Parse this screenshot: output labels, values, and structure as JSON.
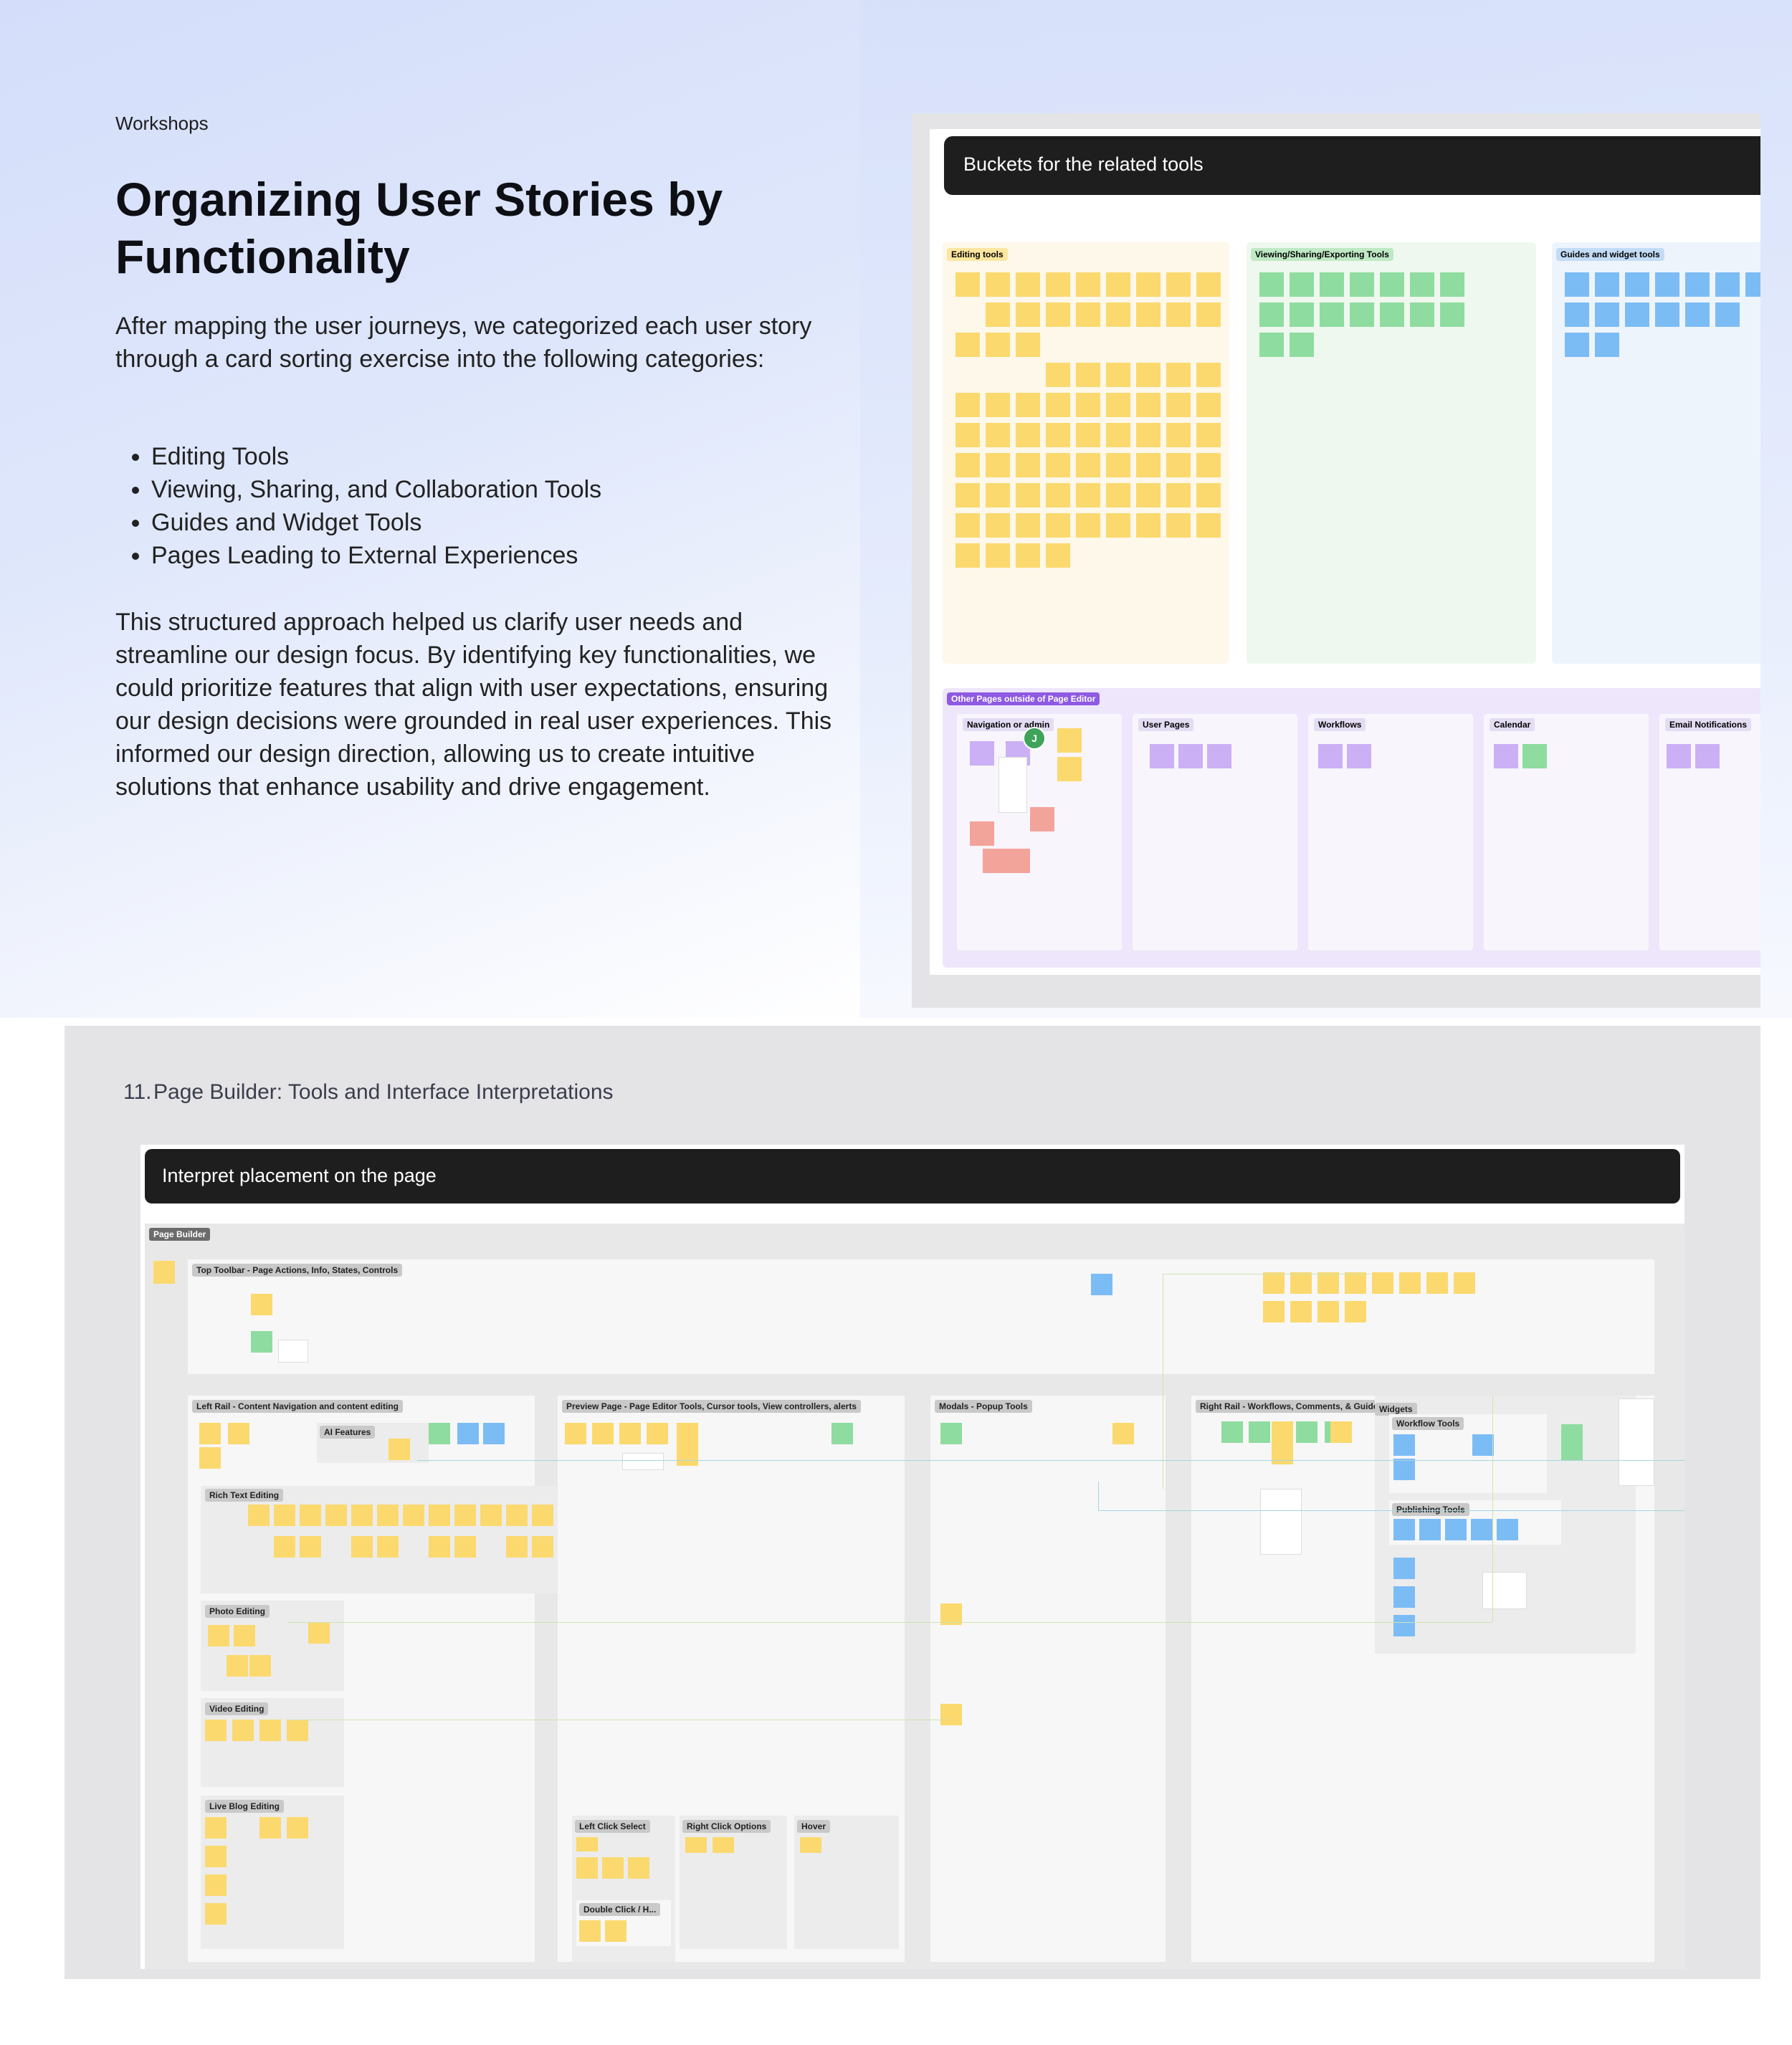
{
  "kicker": "Workshops",
  "title": "Organizing User Stories by Functionality",
  "intro": "After mapping the user journeys, we categorized each user story through a card sorting exercise into the following categories:",
  "categories": [
    "Editing Tools",
    "Viewing, Sharing, and Collaboration Tools",
    "Guides and Widget Tools",
    "Pages Leading to External Experiences"
  ],
  "closing": "This structured approach helped us clarify user needs and streamline our design focus. By identifying key functionalities, we could prioritize features that align with user expectations, ensuring our design decisions were grounded in real user experiences. This informed our design direction, allowing us to create intuitive solutions that enhance usability and drive engagement.",
  "shot1": {
    "header": "Buckets for the related tools",
    "buckets": [
      {
        "label": "Editing tools",
        "color": "#fdf8ea",
        "tag_color": "#fde6a0"
      },
      {
        "label": "Viewing/Sharing/Exporting Tools",
        "color": "#eef8ee",
        "tag_color": "#bfe8c4"
      },
      {
        "label": "Guides and widget tools",
        "color": "#eef4fc",
        "tag_color": "#c3dcf6"
      }
    ],
    "other_pages_label": "Other Pages outside of Page Editor",
    "columns": [
      "Navigation or admin",
      "User Pages",
      "Workflows",
      "Calendar",
      "Email Notifications"
    ],
    "avatar_initial": "J"
  },
  "section2": {
    "number": "11.",
    "title": "Page Builder: Tools and Interface Interpretations",
    "header": "Interpret placement on the page",
    "page_builder_tag": "Page Builder",
    "regions": {
      "top_toolbar": "Top Toolbar - Page Actions, Info, States, Controls",
      "left_rail": "Left Rail - Content Navigation and content editing",
      "preview_page": "Preview Page - Page Editor Tools, Cursor tools, View controllers, alerts",
      "modals": "Modals - Popup Tools",
      "right_rail": "Right Rail - Workflows, Comments, & Guides",
      "widgets": "Widgets",
      "ai_features": "AI Features",
      "rich_text": "Rich Text Editing",
      "photo": "Photo Editing",
      "video": "Video Editing",
      "live_blog": "Live Blog Editing",
      "workflow_tools": "Workflow Tools",
      "publishing_tools": "Publishing Tools",
      "left_click": "Left Click Select",
      "right_click": "Right Click Options",
      "hover": "Hover",
      "double_click": "Double Click / H..."
    }
  }
}
